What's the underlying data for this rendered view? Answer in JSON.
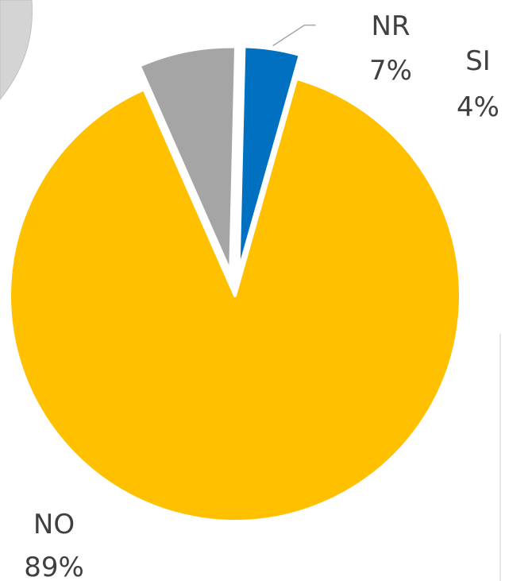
{
  "chart_data": {
    "type": "pie",
    "title": "",
    "slices": [
      {
        "label": "NO",
        "value": 89,
        "value_label": "89%",
        "color": "#FFC000",
        "exploded": false
      },
      {
        "label": "NR",
        "value": 7,
        "value_label": "7%",
        "color": "#A5A5A5",
        "exploded": true
      },
      {
        "label": "SI",
        "value": 4,
        "value_label": "4%",
        "color": "#0070C0",
        "exploded": true
      }
    ],
    "legend": "none",
    "data_labels": "outside",
    "label_text_color": "#404040",
    "slice_border_color": "#ffffff"
  }
}
